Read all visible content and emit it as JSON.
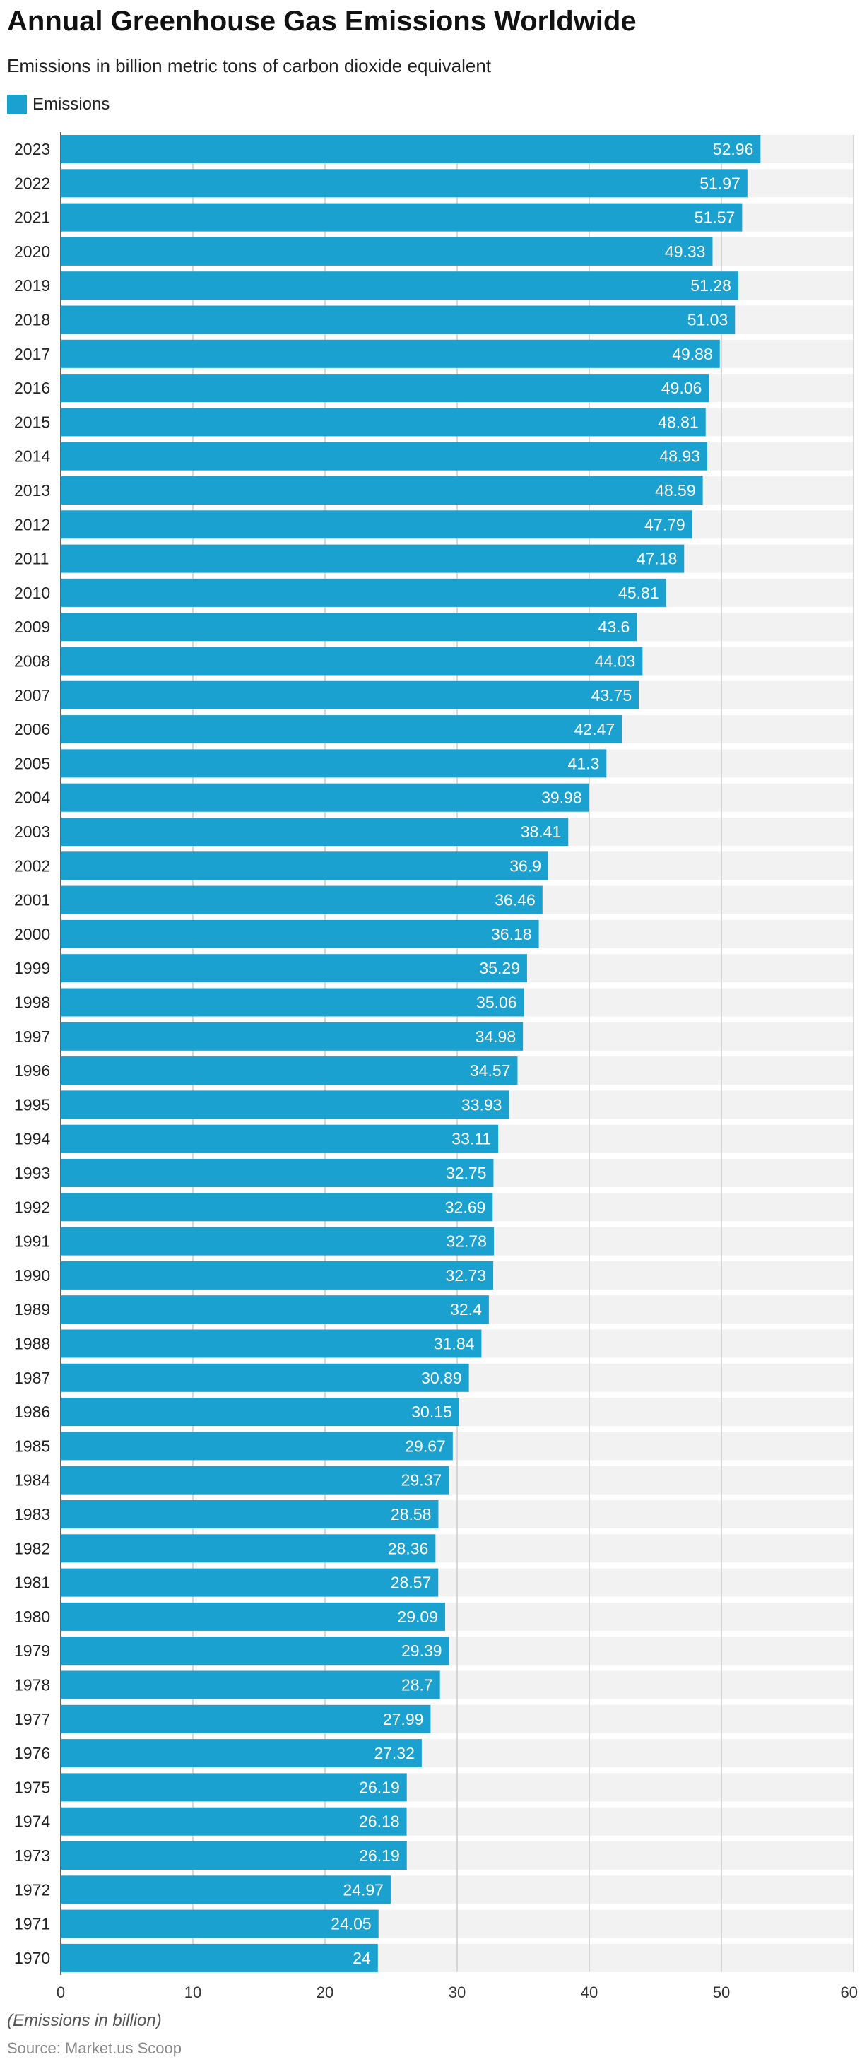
{
  "header": {
    "title": "Annual Greenhouse Gas Emissions Worldwide",
    "subtitle": "Emissions in billion metric tons of carbon dioxide equivalent"
  },
  "legend": {
    "label": "Emissions",
    "color": "#1ba1cf"
  },
  "footer": {
    "note": "(Emissions in billion)",
    "source": "Source: Market.us Scoop"
  },
  "colors": {
    "bar": "#1ba1cf",
    "track": "#f2f2f2",
    "grid": "#cccccc",
    "label_text": "#ffffff"
  },
  "chart_data": {
    "type": "bar",
    "orientation": "horizontal",
    "categories": [
      "2023",
      "2022",
      "2021",
      "2020",
      "2019",
      "2018",
      "2017",
      "2016",
      "2015",
      "2014",
      "2013",
      "2012",
      "2011",
      "2010",
      "2009",
      "2008",
      "2007",
      "2006",
      "2005",
      "2004",
      "2003",
      "2002",
      "2001",
      "2000",
      "1999",
      "1998",
      "1997",
      "1996",
      "1995",
      "1994",
      "1993",
      "1992",
      "1991",
      "1990",
      "1989",
      "1988",
      "1987",
      "1986",
      "1985",
      "1984",
      "1983",
      "1982",
      "1981",
      "1980",
      "1979",
      "1978",
      "1977",
      "1976",
      "1975",
      "1974",
      "1973",
      "1972",
      "1971",
      "1970"
    ],
    "series": [
      {
        "name": "Emissions",
        "values": [
          52.96,
          51.97,
          51.57,
          49.33,
          51.28,
          51.03,
          49.88,
          49.06,
          48.81,
          48.93,
          48.59,
          47.79,
          47.18,
          45.81,
          43.6,
          44.03,
          43.75,
          42.47,
          41.3,
          39.98,
          38.41,
          36.9,
          36.46,
          36.18,
          35.29,
          35.06,
          34.98,
          34.57,
          33.93,
          33.11,
          32.75,
          32.69,
          32.78,
          32.73,
          32.4,
          31.84,
          30.89,
          30.15,
          29.67,
          29.37,
          28.58,
          28.36,
          28.57,
          29.09,
          29.39,
          28.7,
          27.99,
          27.32,
          26.19,
          26.18,
          26.19,
          24.97,
          24.05,
          24
        ]
      }
    ],
    "xlim": [
      0,
      60
    ],
    "xticks": [
      0,
      10,
      20,
      30,
      40,
      50,
      60
    ],
    "grid": true,
    "legend_position": "top-left"
  }
}
